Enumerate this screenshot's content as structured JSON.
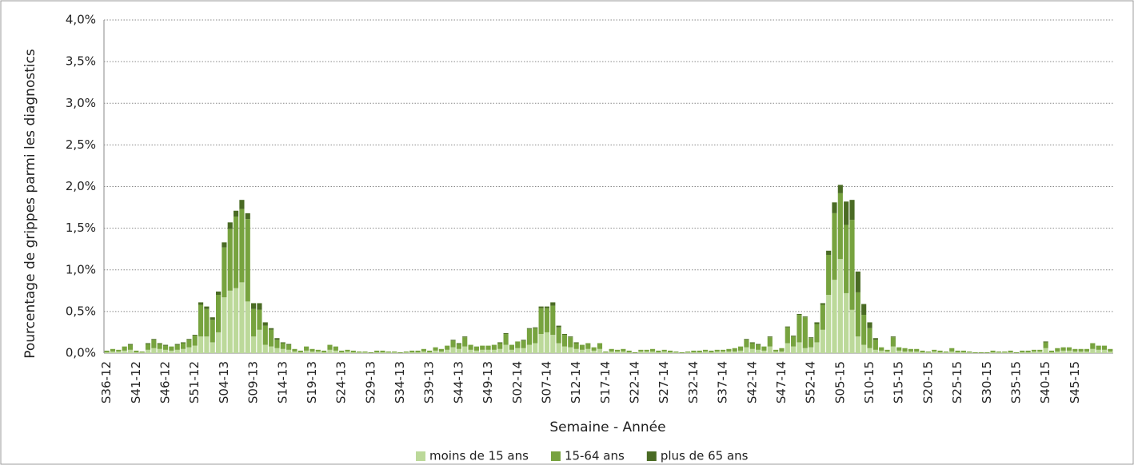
{
  "chart_data": {
    "type": "stacked-bar",
    "y_label": "Pourcentage de grippes parmi les diagnostics",
    "x_label": "Semaine - Année",
    "categories": [
      "S36-12",
      null,
      null,
      null,
      null,
      "S41-12",
      null,
      null,
      null,
      null,
      "S46-12",
      null,
      null,
      null,
      null,
      "S51-12",
      null,
      null,
      null,
      null,
      "S04-13",
      null,
      null,
      null,
      null,
      "S09-13",
      null,
      null,
      null,
      null,
      "S14-13",
      null,
      null,
      null,
      null,
      "S19-13",
      null,
      null,
      null,
      null,
      "S24-13",
      null,
      null,
      null,
      null,
      "S29-13",
      null,
      null,
      null,
      null,
      "S34-13",
      null,
      null,
      null,
      null,
      "S39-13",
      null,
      null,
      null,
      null,
      "S44-13",
      null,
      null,
      null,
      null,
      "S49-13",
      null,
      null,
      null,
      null,
      "S02-14",
      null,
      null,
      null,
      null,
      "S07-14",
      null,
      null,
      null,
      null,
      "S12-14",
      null,
      null,
      null,
      null,
      "S17-14",
      null,
      null,
      null,
      null,
      "S22-14",
      null,
      null,
      null,
      null,
      "S27-14",
      null,
      null,
      null,
      null,
      "S32-14",
      null,
      null,
      null,
      null,
      "S37-14",
      null,
      null,
      null,
      null,
      "S42-14",
      null,
      null,
      null,
      null,
      "S47-14",
      null,
      null,
      null,
      null,
      "S52-14",
      null,
      null,
      null,
      null,
      "S05-15",
      null,
      null,
      null,
      null,
      "S10-15",
      null,
      null,
      null,
      null,
      "S15-15",
      null,
      null,
      null,
      null,
      "S20-15",
      null,
      null,
      null,
      null,
      "S25-15",
      null,
      null,
      null,
      null,
      "S30-15",
      null,
      null,
      null,
      null,
      "S35-15",
      null,
      null,
      null,
      null,
      "S40-15",
      null,
      null,
      null,
      null,
      "S45-15",
      null,
      null,
      null,
      null,
      null,
      null
    ],
    "series": [
      {
        "name": "moins de 15 ans",
        "color": "#bcd99a",
        "values": [
          0.01,
          0.02,
          0.02,
          0.03,
          0.04,
          0.01,
          0.01,
          0.04,
          0.06,
          0.05,
          0.04,
          0.03,
          0.04,
          0.05,
          0.07,
          0.09,
          0.2,
          0.2,
          0.13,
          0.25,
          0.67,
          0.75,
          0.78,
          0.85,
          0.62,
          0.2,
          0.28,
          0.1,
          0.08,
          0.06,
          0.05,
          0.04,
          0.02,
          0.01,
          0.03,
          0.02,
          0.02,
          0.01,
          0.04,
          0.03,
          0.01,
          0.02,
          0.01,
          0.01,
          0.01,
          0,
          0.01,
          0.01,
          0.01,
          0.01,
          0,
          0.01,
          0.01,
          0.01,
          0.02,
          0.01,
          0.03,
          0.02,
          0.04,
          0.07,
          0.05,
          0.08,
          0.04,
          0.03,
          0.04,
          0.04,
          0.04,
          0.05,
          0.1,
          0.04,
          0.06,
          0.06,
          0.1,
          0.12,
          0.23,
          0.25,
          0.22,
          0.12,
          0.08,
          0.07,
          0.05,
          0.04,
          0.05,
          0.03,
          0.05,
          0.01,
          0.02,
          0.02,
          0.02,
          0.01,
          0,
          0.02,
          0.02,
          0.02,
          0.01,
          0.02,
          0.01,
          0.01,
          0,
          0.01,
          0.01,
          0.01,
          0.02,
          0.01,
          0.02,
          0.02,
          0.02,
          0.02,
          0.03,
          0.07,
          0.05,
          0.04,
          0.03,
          0.08,
          0.02,
          0.02,
          0.12,
          0.08,
          0.13,
          0.06,
          0.07,
          0.13,
          0.28,
          0.7,
          0.88,
          1.13,
          0.72,
          0.52,
          0.2,
          0.1,
          0.06,
          0.04,
          0.03,
          0.02,
          0.08,
          0.03,
          0.02,
          0.02,
          0.02,
          0.01,
          0.01,
          0.02,
          0.01,
          0.01,
          0.02,
          0.01,
          0.01,
          0.01,
          0,
          0,
          0,
          0.01,
          0.01,
          0.01,
          0.01,
          0,
          0.01,
          0.01,
          0.02,
          0.02,
          0.06,
          0.01,
          0.02,
          0.03,
          0.03,
          0.02,
          0.02,
          0.02,
          0.05,
          0.04,
          0.04,
          0.02
        ]
      },
      {
        "name": "15-64 ans",
        "color": "#77a33f",
        "values": [
          0.02,
          0.03,
          0.02,
          0.05,
          0.06,
          0.02,
          0.01,
          0.07,
          0.1,
          0.06,
          0.05,
          0.05,
          0.06,
          0.07,
          0.09,
          0.12,
          0.38,
          0.33,
          0.27,
          0.45,
          0.6,
          0.74,
          0.86,
          0.88,
          0.99,
          0.33,
          0.24,
          0.23,
          0.2,
          0.1,
          0.07,
          0.06,
          0.03,
          0.02,
          0.05,
          0.03,
          0.02,
          0.02,
          0.06,
          0.05,
          0.02,
          0.02,
          0.02,
          0.01,
          0.01,
          0.01,
          0.02,
          0.02,
          0.01,
          0.01,
          0.01,
          0.01,
          0.02,
          0.02,
          0.03,
          0.02,
          0.04,
          0.03,
          0.05,
          0.08,
          0.06,
          0.11,
          0.06,
          0.05,
          0.05,
          0.05,
          0.06,
          0.07,
          0.13,
          0.06,
          0.08,
          0.09,
          0.19,
          0.18,
          0.31,
          0.29,
          0.35,
          0.19,
          0.14,
          0.12,
          0.07,
          0.06,
          0.07,
          0.04,
          0.07,
          0.01,
          0.03,
          0.02,
          0.03,
          0.02,
          0.01,
          0.02,
          0.02,
          0.03,
          0.02,
          0.02,
          0.02,
          0.01,
          0.01,
          0.01,
          0.02,
          0.02,
          0.02,
          0.02,
          0.02,
          0.02,
          0.03,
          0.04,
          0.05,
          0.09,
          0.07,
          0.06,
          0.05,
          0.11,
          0.02,
          0.04,
          0.19,
          0.12,
          0.33,
          0.37,
          0.11,
          0.22,
          0.3,
          0.48,
          0.8,
          0.79,
          0.82,
          1.08,
          0.53,
          0.36,
          0.24,
          0.12,
          0.04,
          0.02,
          0.11,
          0.04,
          0.04,
          0.03,
          0.03,
          0.02,
          0.01,
          0.02,
          0.02,
          0.01,
          0.04,
          0.02,
          0.02,
          0.01,
          0.01,
          0.01,
          0.01,
          0.02,
          0.01,
          0.01,
          0.02,
          0.01,
          0.02,
          0.02,
          0.02,
          0.02,
          0.07,
          0.02,
          0.04,
          0.04,
          0.04,
          0.03,
          0.03,
          0.03,
          0.07,
          0.05,
          0.05,
          0.03
        ]
      },
      {
        "name": "plus de 65 ans",
        "color": "#4a6b24",
        "values": [
          0,
          0,
          0,
          0,
          0.01,
          0,
          0,
          0.01,
          0.01,
          0.01,
          0.01,
          0,
          0.01,
          0.01,
          0.01,
          0.01,
          0.03,
          0.03,
          0.03,
          0.04,
          0.06,
          0.08,
          0.07,
          0.11,
          0.07,
          0.07,
          0.08,
          0.04,
          0.02,
          0.02,
          0.01,
          0.01,
          0,
          0,
          0,
          0,
          0,
          0,
          0,
          0,
          0,
          0,
          0,
          0,
          0,
          0,
          0,
          0,
          0,
          0,
          0,
          0,
          0,
          0,
          0,
          0,
          0,
          0,
          0,
          0.01,
          0.01,
          0.01,
          0,
          0,
          0,
          0,
          0,
          0.01,
          0.01,
          0,
          0,
          0.01,
          0.01,
          0.01,
          0.02,
          0.02,
          0.04,
          0.02,
          0.01,
          0.01,
          0.01,
          0,
          0,
          0,
          0,
          0,
          0,
          0,
          0,
          0,
          0,
          0,
          0,
          0,
          0,
          0,
          0,
          0,
          0,
          0,
          0,
          0,
          0,
          0,
          0,
          0,
          0,
          0,
          0,
          0.01,
          0.01,
          0.01,
          0,
          0.01,
          0,
          0,
          0.01,
          0.01,
          0.01,
          0.01,
          0.01,
          0.02,
          0.02,
          0.05,
          0.13,
          0.1,
          0.28,
          0.24,
          0.25,
          0.13,
          0.07,
          0.02,
          0,
          0,
          0.01,
          0,
          0,
          0,
          0,
          0,
          0,
          0,
          0,
          0,
          0,
          0,
          0,
          0,
          0,
          0,
          0,
          0,
          0,
          0,
          0,
          0,
          0,
          0,
          0,
          0,
          0.01,
          0,
          0,
          0,
          0,
          0,
          0,
          0,
          0,
          0,
          0,
          0
        ]
      }
    ],
    "ylim": [
      0,
      4
    ],
    "yticks": [
      {
        "value": 0,
        "label": "0,0%"
      },
      {
        "value": 0.5,
        "label": "0,5%"
      },
      {
        "value": 1,
        "label": "1,0%"
      },
      {
        "value": 1.5,
        "label": "1,5%"
      },
      {
        "value": 2,
        "label": "2,0%"
      },
      {
        "value": 2.5,
        "label": "2,5%"
      },
      {
        "value": 3,
        "label": "3,0%"
      },
      {
        "value": 3.5,
        "label": "3,5%"
      },
      {
        "value": 4,
        "label": "4,0%"
      }
    ],
    "grid": true,
    "legend": "bottom"
  }
}
